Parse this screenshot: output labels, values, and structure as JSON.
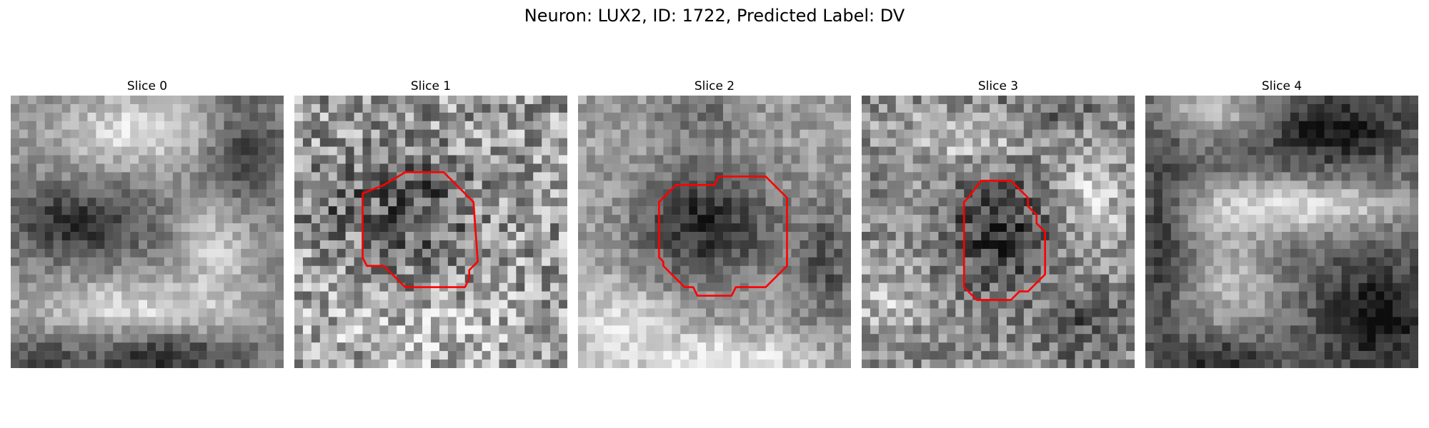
{
  "figure": {
    "title": "Neuron: LUX2, ID: 1722, Predicted Label: DV"
  },
  "slices": [
    {
      "title": "Slice 0",
      "has_contour": false,
      "pattern": "bright-band-lower"
    },
    {
      "title": "Slice 1",
      "has_contour": true,
      "pattern": "noisy-dark-center"
    },
    {
      "title": "Slice 2",
      "has_contour": true,
      "pattern": "dark-blob-center"
    },
    {
      "title": "Slice 3",
      "has_contour": true,
      "pattern": "dark-center-bright-ring"
    },
    {
      "title": "Slice 4",
      "has_contour": false,
      "pattern": "bright-cross"
    }
  ],
  "contour_color": "#ff0000"
}
